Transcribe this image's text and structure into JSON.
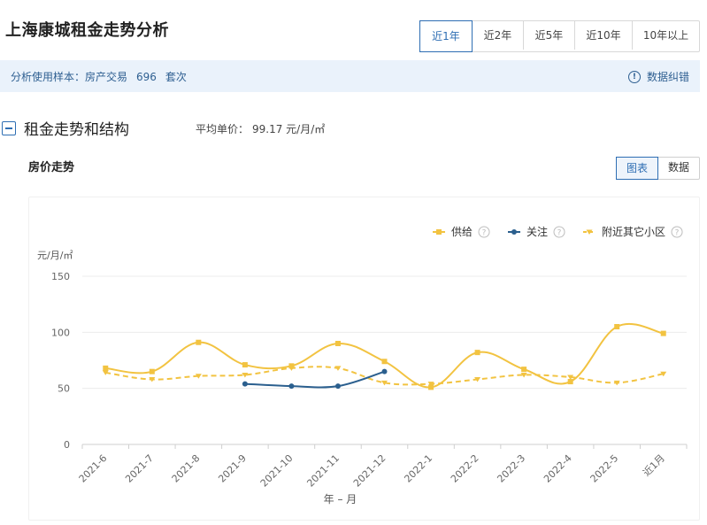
{
  "header": {
    "title": "上海康城租金走势分析"
  },
  "range_tabs": [
    {
      "label": "近1年",
      "active": true
    },
    {
      "label": "近2年",
      "active": false
    },
    {
      "label": "近5年",
      "active": false
    },
    {
      "label": "近10年",
      "active": false
    },
    {
      "label": "10年以上",
      "active": false
    }
  ],
  "sample": {
    "label": "分析使用样本：房产交易",
    "count": "696",
    "unit": "套次",
    "correct_label": "数据纠错"
  },
  "section": {
    "title": "租金走势和结构",
    "avg_label": "平均单价：",
    "avg_value": "99.17 元/月/㎡"
  },
  "chart_section": {
    "title": "房价走势",
    "view_chart": "图表",
    "view_data": "数据"
  },
  "colors": {
    "accent": "#2e6eb3",
    "supply": "#f2c341",
    "attention": "#2b5f8e",
    "nearby": "#f2c341"
  },
  "chart_data": {
    "type": "line",
    "xlabel": "年 – 月",
    "ylabel": "元/月/㎡",
    "ylim": [
      0,
      150
    ],
    "yticks": [
      0,
      50,
      100,
      150
    ],
    "grid": true,
    "legend_position": "top-right",
    "categories": [
      "2021-6",
      "2021-7",
      "2021-8",
      "2021-9",
      "2021-10",
      "2021-11",
      "2021-12",
      "2022-1",
      "2022-2",
      "2022-3",
      "2022-4",
      "2022-5",
      "近1月"
    ],
    "series": [
      {
        "name": "供给",
        "style": "solid",
        "marker": "square",
        "values": [
          68,
          65,
          91,
          71,
          70,
          90,
          74,
          51,
          82,
          67,
          56,
          105,
          99
        ]
      },
      {
        "name": "关注",
        "style": "solid",
        "marker": "circle",
        "values": [
          null,
          null,
          null,
          54,
          52,
          52,
          65,
          null,
          null,
          null,
          null,
          null,
          null
        ]
      },
      {
        "name": "附近其它小区",
        "style": "dashed",
        "marker": "triangle",
        "values": [
          64,
          58,
          61,
          62,
          68,
          68,
          55,
          54,
          58,
          62,
          60,
          55,
          63
        ]
      }
    ]
  }
}
